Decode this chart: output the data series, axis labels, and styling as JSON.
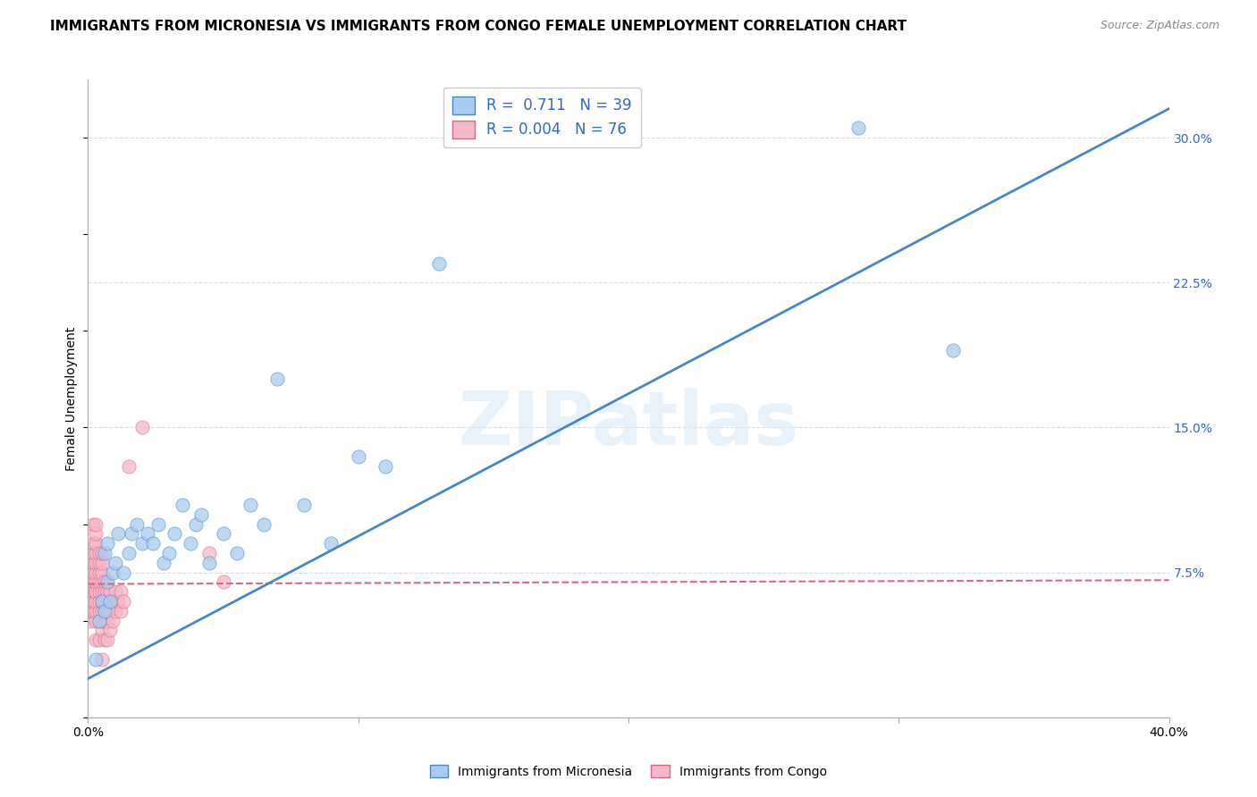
{
  "title": "IMMIGRANTS FROM MICRONESIA VS IMMIGRANTS FROM CONGO FEMALE UNEMPLOYMENT CORRELATION CHART",
  "source": "Source: ZipAtlas.com",
  "ylabel": "Female Unemployment",
  "watermark": "ZIPatlas",
  "xlim": [
    0.0,
    0.4
  ],
  "ylim": [
    0.0,
    0.33
  ],
  "xticks": [
    0.0,
    0.1,
    0.2,
    0.3,
    0.4
  ],
  "xtick_labels": [
    "0.0%",
    "",
    "",
    "",
    "40.0%"
  ],
  "yticks_right": [
    0.0,
    0.075,
    0.15,
    0.225,
    0.3
  ],
  "ytick_labels_right": [
    "",
    "7.5%",
    "15.0%",
    "22.5%",
    "30.0%"
  ],
  "micronesia": {
    "name": "Immigrants from Micronesia",
    "color": "#aaccee",
    "edge_color": "#4488cc",
    "line_color": "#4488cc",
    "R": 0.711,
    "N": 39,
    "x": [
      0.003,
      0.004,
      0.005,
      0.006,
      0.006,
      0.007,
      0.007,
      0.008,
      0.009,
      0.01,
      0.011,
      0.013,
      0.015,
      0.016,
      0.018,
      0.02,
      0.022,
      0.024,
      0.026,
      0.028,
      0.03,
      0.032,
      0.035,
      0.038,
      0.04,
      0.042,
      0.045,
      0.05,
      0.055,
      0.06,
      0.065,
      0.07,
      0.08,
      0.09,
      0.1,
      0.11,
      0.13,
      0.285,
      0.32
    ],
    "y": [
      0.03,
      0.05,
      0.06,
      0.055,
      0.085,
      0.07,
      0.09,
      0.06,
      0.075,
      0.08,
      0.095,
      0.075,
      0.085,
      0.095,
      0.1,
      0.09,
      0.095,
      0.09,
      0.1,
      0.08,
      0.085,
      0.095,
      0.11,
      0.09,
      0.1,
      0.105,
      0.08,
      0.095,
      0.085,
      0.11,
      0.1,
      0.175,
      0.11,
      0.09,
      0.135,
      0.13,
      0.235,
      0.305,
      0.19
    ],
    "trendline": {
      "x_start": 0.0,
      "y_start": 0.02,
      "x_end": 0.4,
      "y_end": 0.315
    }
  },
  "congo": {
    "name": "Immigrants from Congo",
    "color": "#f4b8c8",
    "edge_color": "#dd6688",
    "line_color": "#dd6688",
    "R": 0.004,
    "N": 76,
    "x": [
      0.001,
      0.001,
      0.001,
      0.001,
      0.001,
      0.001,
      0.002,
      0.002,
      0.002,
      0.002,
      0.002,
      0.002,
      0.002,
      0.002,
      0.002,
      0.002,
      0.002,
      0.003,
      0.003,
      0.003,
      0.003,
      0.003,
      0.003,
      0.003,
      0.003,
      0.003,
      0.003,
      0.003,
      0.003,
      0.003,
      0.004,
      0.004,
      0.004,
      0.004,
      0.004,
      0.004,
      0.004,
      0.004,
      0.004,
      0.005,
      0.005,
      0.005,
      0.005,
      0.005,
      0.005,
      0.005,
      0.005,
      0.005,
      0.005,
      0.006,
      0.006,
      0.006,
      0.006,
      0.006,
      0.006,
      0.007,
      0.007,
      0.007,
      0.007,
      0.007,
      0.008,
      0.008,
      0.008,
      0.008,
      0.009,
      0.009,
      0.01,
      0.01,
      0.011,
      0.012,
      0.012,
      0.013,
      0.015,
      0.02,
      0.045,
      0.05
    ],
    "y": [
      0.05,
      0.055,
      0.06,
      0.065,
      0.065,
      0.07,
      0.055,
      0.06,
      0.06,
      0.065,
      0.07,
      0.075,
      0.08,
      0.08,
      0.085,
      0.09,
      0.1,
      0.04,
      0.05,
      0.055,
      0.06,
      0.065,
      0.065,
      0.07,
      0.075,
      0.08,
      0.085,
      0.09,
      0.095,
      0.1,
      0.04,
      0.05,
      0.055,
      0.06,
      0.065,
      0.07,
      0.075,
      0.08,
      0.085,
      0.03,
      0.045,
      0.05,
      0.055,
      0.06,
      0.065,
      0.07,
      0.075,
      0.08,
      0.085,
      0.04,
      0.05,
      0.055,
      0.06,
      0.065,
      0.07,
      0.04,
      0.05,
      0.055,
      0.06,
      0.065,
      0.045,
      0.055,
      0.06,
      0.065,
      0.05,
      0.06,
      0.055,
      0.065,
      0.06,
      0.055,
      0.065,
      0.06,
      0.13,
      0.15,
      0.085,
      0.07
    ],
    "trendline": {
      "x_start": 0.0,
      "y_start": 0.069,
      "x_end": 0.4,
      "y_end": 0.071
    }
  },
  "legend_color": "#3366cc",
  "background_color": "#ffffff",
  "grid_color": "#dddddd",
  "title_fontsize": 11,
  "axis_label_fontsize": 10,
  "tick_fontsize": 10,
  "source_fontsize": 9,
  "watermark_color": "#d8eaf8",
  "watermark_alpha": 0.6
}
